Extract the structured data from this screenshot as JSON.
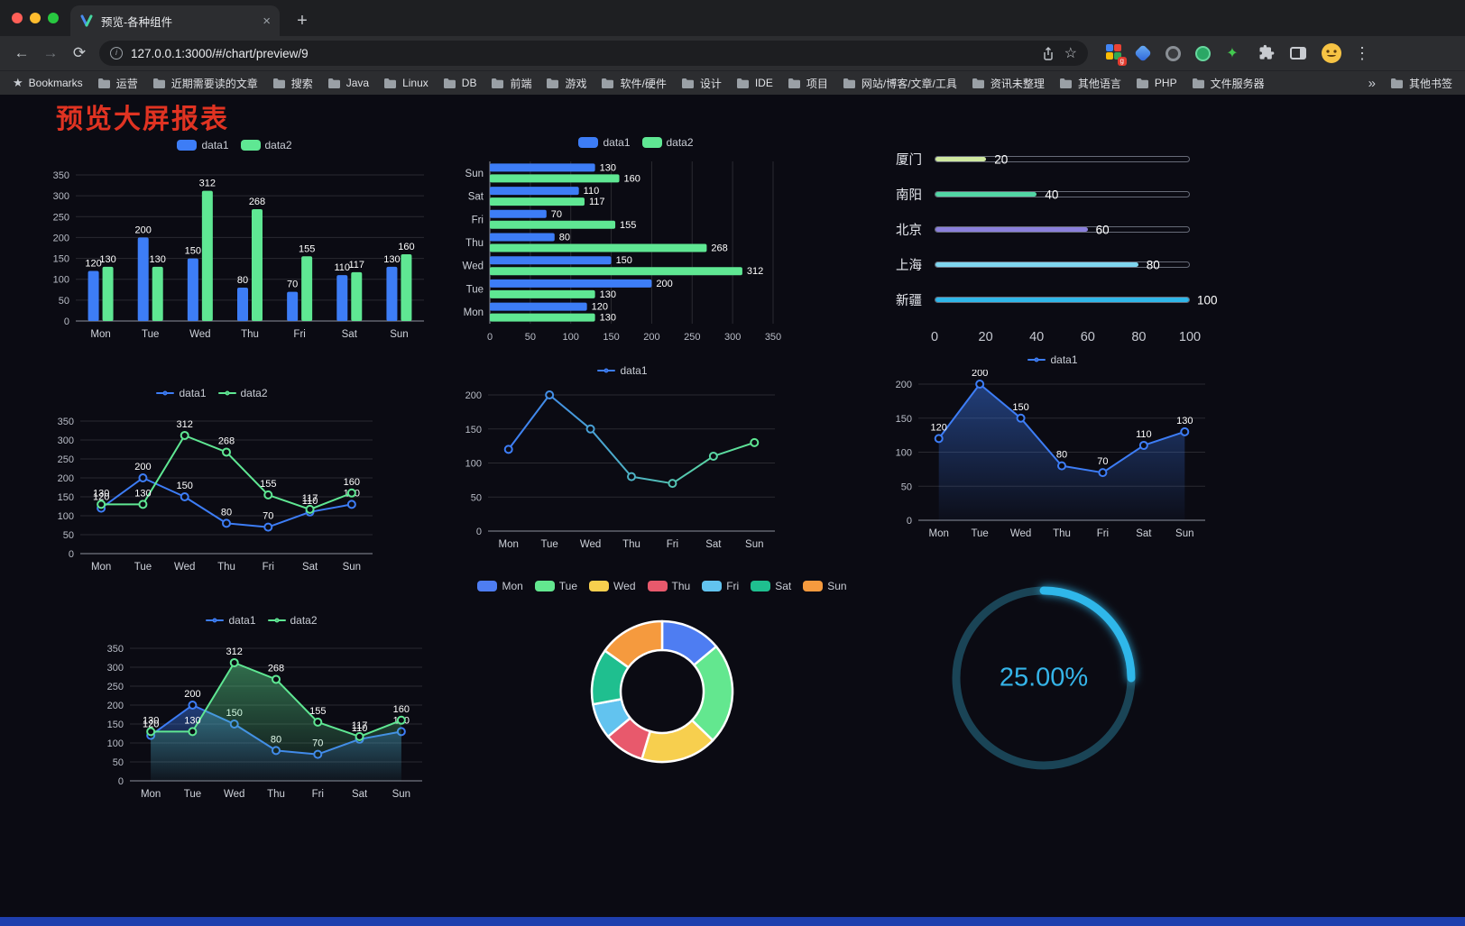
{
  "browser": {
    "tab_title": "预览-各种组件",
    "url": "127.0.0.1:3000/#/chart/preview/9",
    "icons": {
      "back": "←",
      "forward": "→",
      "reload": "⟳",
      "info": "i",
      "star": "☆",
      "bookmarks_star": "★",
      "menu": "⋮",
      "new_tab": "+",
      "close_tab": "×",
      "sparkle_extension": "✦",
      "badge": "g"
    },
    "bookmarks_bar": {
      "root_label": "Bookmarks",
      "folders": [
        "运营",
        "近期需要读的文章",
        "搜索",
        "Java",
        "Linux",
        "DB",
        "前端",
        "游戏",
        "软件/硬件",
        "设计",
        "IDE",
        "项目",
        "网站/博客/文章/工具",
        "资讯未整理",
        "其他语言",
        "PHP",
        "文件服务器"
      ],
      "overflow": "»",
      "other_bookmarks": "其他书签"
    }
  },
  "page": {
    "title": "预览大屏报表"
  },
  "chart_data": [
    {
      "id": "bar-grouped",
      "type": "bar",
      "title": "",
      "categories": [
        "Mon",
        "Tue",
        "Wed",
        "Thu",
        "Fri",
        "Sat",
        "Sun"
      ],
      "series": [
        {
          "name": "data1",
          "color": "#3d7df6",
          "values": [
            120,
            200,
            150,
            80,
            70,
            110,
            130
          ]
        },
        {
          "name": "data2",
          "color": "#5fe793",
          "values": [
            130,
            130,
            312,
            268,
            155,
            117,
            160
          ]
        }
      ],
      "ylim": [
        0,
        350
      ],
      "yticks": [
        0,
        50,
        100,
        150,
        200,
        250,
        300,
        350
      ],
      "grid": true,
      "legend_position": "top",
      "value_labels": true
    },
    {
      "id": "bar-horizontal",
      "type": "bar",
      "orientation": "horizontal",
      "title": "",
      "categories": [
        "Mon",
        "Tue",
        "Wed",
        "Thu",
        "Fri",
        "Sat",
        "Sun"
      ],
      "category_order_top_to_bottom": [
        "Sun",
        "Sat",
        "Fri",
        "Thu",
        "Wed",
        "Tue",
        "Mon"
      ],
      "series": [
        {
          "name": "data1",
          "color": "#3d7df6",
          "values": [
            120,
            200,
            150,
            80,
            70,
            110,
            130
          ]
        },
        {
          "name": "data2",
          "color": "#5fe793",
          "values": [
            130,
            130,
            312,
            268,
            155,
            117,
            160
          ]
        }
      ],
      "xlim": [
        0,
        350
      ],
      "xticks": [
        0,
        50,
        100,
        150,
        200,
        250,
        300,
        350
      ],
      "grid": true,
      "legend_position": "top",
      "value_labels": true
    },
    {
      "id": "progress",
      "type": "bar",
      "subtype": "progress-pills",
      "max": 100,
      "items": [
        {
          "label": "厦门",
          "value": 20,
          "color": "#cfe8a0"
        },
        {
          "label": "南阳",
          "value": 40,
          "color": "#52d6a5"
        },
        {
          "label": "北京",
          "value": 60,
          "color": "#8a7fdb"
        },
        {
          "label": "上海",
          "value": 80,
          "color": "#7fd6ef"
        },
        {
          "label": "新疆",
          "value": 100,
          "color": "#2fb7ea"
        }
      ],
      "axis_ticks": [
        0,
        20,
        40,
        60,
        80,
        100
      ]
    },
    {
      "id": "line-dual",
      "type": "line",
      "title": "",
      "categories": [
        "Mon",
        "Tue",
        "Wed",
        "Thu",
        "Fri",
        "Sat",
        "Sun"
      ],
      "series": [
        {
          "name": "data1",
          "color": "#3d7df6",
          "values": [
            120,
            200,
            150,
            80,
            70,
            110,
            130
          ]
        },
        {
          "name": "data2",
          "color": "#5fe793",
          "values": [
            130,
            130,
            312,
            268,
            155,
            117,
            160
          ]
        }
      ],
      "ylim": [
        0,
        350
      ],
      "yticks": [
        0,
        50,
        100,
        150,
        200,
        250,
        300,
        350
      ],
      "grid": true,
      "legend_position": "top",
      "value_labels": true
    },
    {
      "id": "line-gradient",
      "type": "line",
      "title": "",
      "categories": [
        "Mon",
        "Tue",
        "Wed",
        "Thu",
        "Fri",
        "Sat",
        "Sun"
      ],
      "series": [
        {
          "name": "data1",
          "gradient": [
            "#3d7df6",
            "#5fe793"
          ],
          "values": [
            120,
            200,
            150,
            80,
            70,
            110,
            130
          ]
        }
      ],
      "ylim": [
        0,
        200
      ],
      "yticks": [
        0,
        50,
        100,
        150,
        200
      ],
      "grid": true,
      "legend_position": "top",
      "value_labels": false
    },
    {
      "id": "line-area",
      "type": "area",
      "title": "",
      "categories": [
        "Mon",
        "Tue",
        "Wed",
        "Thu",
        "Fri",
        "Sat",
        "Sun"
      ],
      "series": [
        {
          "name": "data1",
          "color": "#3d7df6",
          "area": true,
          "values": [
            120,
            200,
            150,
            80,
            70,
            110,
            130
          ]
        }
      ],
      "ylim": [
        0,
        200
      ],
      "yticks": [
        0,
        50,
        100,
        150,
        200
      ],
      "grid": true,
      "legend_position": "top",
      "value_labels": true
    },
    {
      "id": "line-dual-area",
      "type": "area",
      "title": "",
      "categories": [
        "Mon",
        "Tue",
        "Wed",
        "Thu",
        "Fri",
        "Sat",
        "Sun"
      ],
      "series": [
        {
          "name": "data1",
          "color": "#3d7df6",
          "area": true,
          "values": [
            120,
            200,
            150,
            80,
            70,
            110,
            130
          ]
        },
        {
          "name": "data2",
          "color": "#5fe793",
          "area": true,
          "values": [
            130,
            130,
            312,
            268,
            155,
            117,
            160
          ]
        }
      ],
      "ylim": [
        0,
        350
      ],
      "yticks": [
        0,
        50,
        100,
        150,
        200,
        250,
        300,
        350
      ],
      "grid": true,
      "legend_position": "top",
      "value_labels": true
    },
    {
      "id": "pie-week",
      "type": "pie",
      "donut": true,
      "title": "",
      "labels": [
        "Mon",
        "Tue",
        "Wed",
        "Thu",
        "Fri",
        "Sat",
        "Sun"
      ],
      "values": [
        120,
        200,
        150,
        80,
        70,
        110,
        130
      ],
      "colors": [
        "#4e7df2",
        "#63e78f",
        "#f7cf4e",
        "#e8596c",
        "#62c3ef",
        "#1fbf8f",
        "#f59a3e"
      ],
      "legend_position": "top"
    },
    {
      "id": "gauge",
      "type": "gauge",
      "value": 25,
      "max": 100,
      "label": "25.00%",
      "color": "#2fb7ea",
      "track_color": "#1a4456"
    }
  ]
}
